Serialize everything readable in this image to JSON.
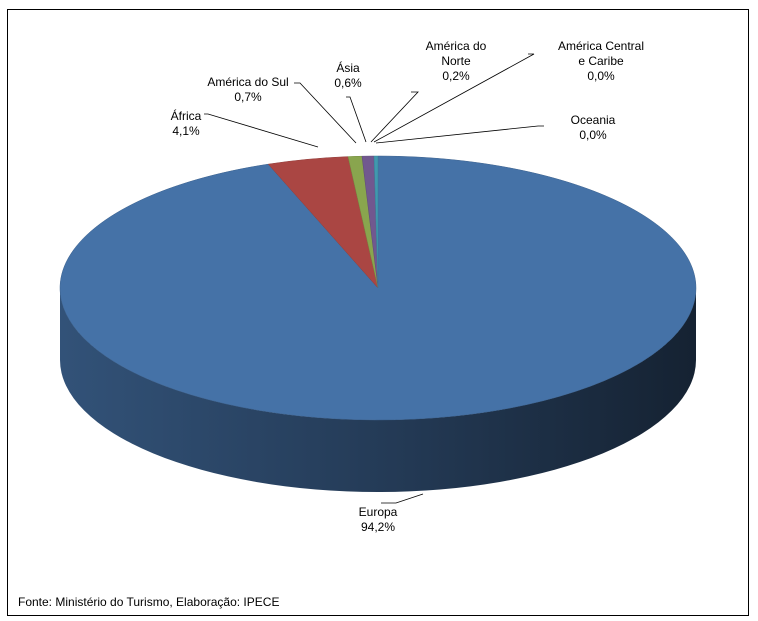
{
  "chart_data": {
    "type": "pie",
    "title": "",
    "style": "3d-pie",
    "slices": [
      {
        "label_lines": [
          "Europa"
        ],
        "value": 94.2,
        "value_text": "94,2%",
        "color": "#4572a7"
      },
      {
        "label_lines": [
          "África"
        ],
        "value": 4.1,
        "value_text": "4,1%",
        "color": "#aa4643"
      },
      {
        "label_lines": [
          "América do Sul"
        ],
        "value": 0.7,
        "value_text": "0,7%",
        "color": "#89a54e"
      },
      {
        "label_lines": [
          "Ásia"
        ],
        "value": 0.6,
        "value_text": "0,6%",
        "color": "#71588f"
      },
      {
        "label_lines": [
          "América do",
          "Norte"
        ],
        "value": 0.2,
        "value_text": "0,2%",
        "color": "#4198af"
      },
      {
        "label_lines": [
          "América Central",
          "e Caribe"
        ],
        "value": 0.0,
        "value_text": "0,0%",
        "color": "#db843d"
      },
      {
        "label_lines": [
          "Oceania"
        ],
        "value": 0.0,
        "value_text": "0,0%",
        "color": "#93a9cf"
      }
    ]
  },
  "source_text": "Fonte: Ministério do Turismo, Elaboração:  IPECE"
}
